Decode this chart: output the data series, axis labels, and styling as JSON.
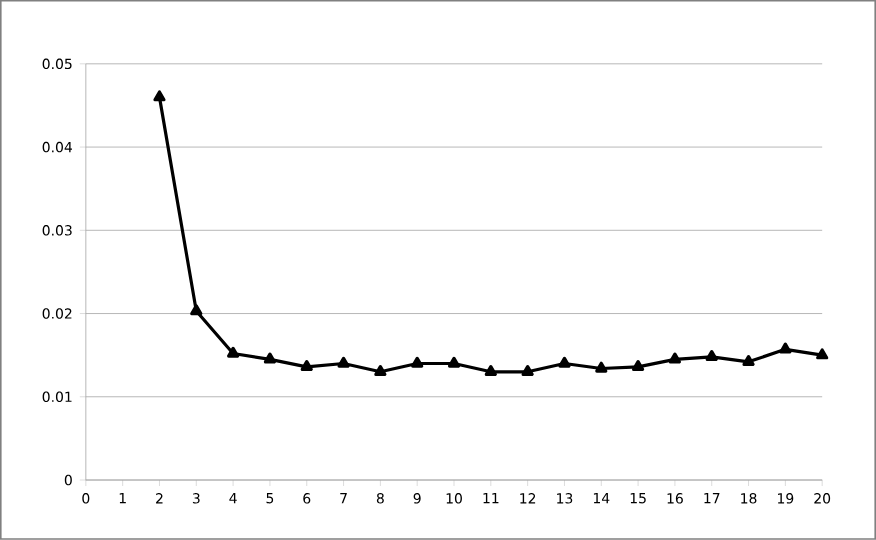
{
  "chart_data": {
    "type": "line",
    "x": [
      2,
      3,
      4,
      5,
      6,
      7,
      8,
      9,
      10,
      11,
      12,
      13,
      14,
      15,
      16,
      17,
      18,
      19,
      20
    ],
    "series": [
      {
        "color": "#000000",
        "values": [
          0.046,
          0.0203,
          0.0152,
          0.0145,
          0.0136,
          0.014,
          0.013,
          0.014,
          0.014,
          0.013,
          0.013,
          0.014,
          0.0134,
          0.0136,
          0.0145,
          0.0148,
          0.0142,
          0.0157,
          0.015
        ]
      }
    ],
    "xlim": [
      0,
      20
    ],
    "xticks": [
      0,
      1,
      2,
      3,
      4,
      5,
      6,
      7,
      8,
      9,
      10,
      11,
      12,
      13,
      14,
      15,
      16,
      17,
      18,
      19,
      20
    ],
    "ylim": [
      0,
      0.05
    ],
    "yticks": [
      0,
      0.01,
      0.02,
      0.03,
      0.04,
      0.05
    ],
    "grid": "y",
    "marker": "triangle",
    "line_style": "solid"
  }
}
